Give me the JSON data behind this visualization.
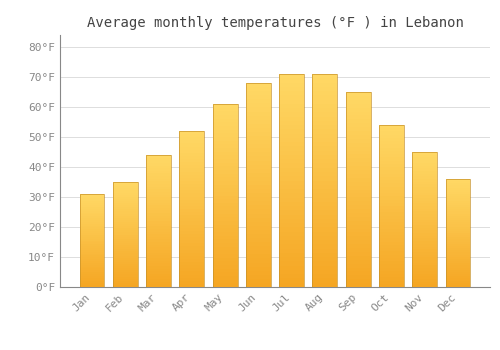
{
  "title": "Average monthly temperatures (°F ) in Lebanon",
  "months": [
    "Jan",
    "Feb",
    "Mar",
    "Apr",
    "May",
    "Jun",
    "Jul",
    "Aug",
    "Sep",
    "Oct",
    "Nov",
    "Dec"
  ],
  "values": [
    31,
    35,
    44,
    52,
    61,
    68,
    71,
    71,
    65,
    54,
    45,
    36
  ],
  "bar_color_bottom": "#F5A623",
  "bar_color_top": "#FFD966",
  "bar_edge_color": "#C8922A",
  "background_color": "#FFFFFF",
  "grid_color": "#DDDDDD",
  "yticks": [
    0,
    10,
    20,
    30,
    40,
    50,
    60,
    70,
    80
  ],
  "ytick_labels": [
    "0°F",
    "10°F",
    "20°F",
    "30°F",
    "40°F",
    "50°F",
    "60°F",
    "70°F",
    "80°F"
  ],
  "ylim": [
    0,
    84
  ],
  "title_fontsize": 10,
  "tick_fontsize": 8,
  "font_family": "monospace",
  "bar_width": 0.75
}
